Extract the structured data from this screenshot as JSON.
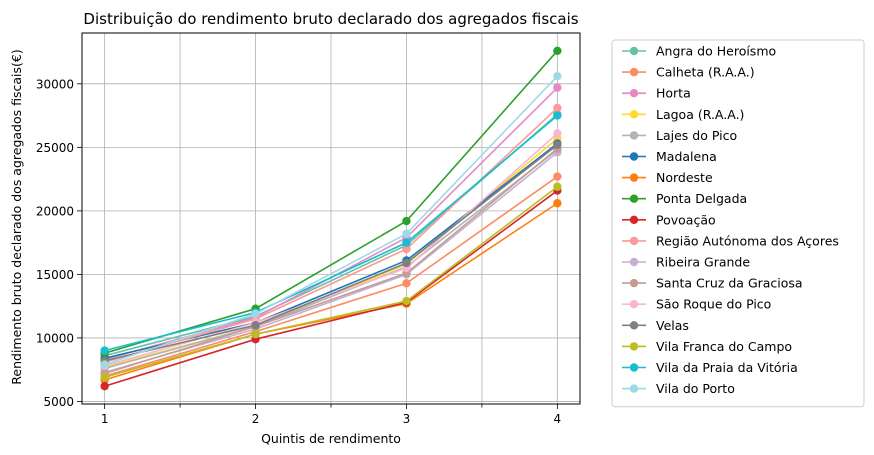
{
  "chart_data": {
    "type": "line",
    "title": "Distribuição do rendimento bruto declarado dos agregados fiscais",
    "xlabel": "Quintis de rendimento",
    "ylabel": "Rendimento bruto declarado dos agregados fiscais(€)",
    "x": [
      1,
      2,
      3,
      4
    ],
    "x_ticks": [
      "1",
      "2",
      "3",
      "4"
    ],
    "xlim": [
      0.85,
      4.15
    ],
    "y_ticks": [
      5000,
      10000,
      15000,
      20000,
      25000,
      30000
    ],
    "ylim": [
      4800,
      34000
    ],
    "grid": true,
    "legend_position": "outside-right",
    "series": [
      {
        "name": "Angra do Heroísmo",
        "color": "#66c2a5",
        "values": [
          8600,
          11700,
          17300,
          27600
        ]
      },
      {
        "name": "Calheta (R.A.A.)",
        "color": "#fc8d62",
        "values": [
          7000,
          10500,
          14300,
          22700
        ]
      },
      {
        "name": "Horta",
        "color": "#e78ac3",
        "values": [
          8300,
          11600,
          17900,
          29700
        ]
      },
      {
        "name": "Lagoa (R.A.A.)",
        "color": "#ffd92f",
        "values": [
          7700,
          10900,
          15800,
          25700
        ]
      },
      {
        "name": "Lajes do Pico",
        "color": "#b3b3b3",
        "values": [
          7600,
          10900,
          15600,
          24800
        ]
      },
      {
        "name": "Madalena",
        "color": "#1f77b4",
        "values": [
          8400,
          11200,
          16100,
          25300
        ]
      },
      {
        "name": "Nordeste",
        "color": "#ff7f0e",
        "values": [
          6700,
          10300,
          12700,
          20600
        ]
      },
      {
        "name": "Ponta Delgada",
        "color": "#2ca02c",
        "values": [
          8800,
          12300,
          19200,
          32600
        ]
      },
      {
        "name": "Povoação",
        "color": "#d62728",
        "values": [
          6200,
          9900,
          12800,
          21600
        ]
      },
      {
        "name": "Região Autónoma dos Açores",
        "color": "#ff9896",
        "values": [
          8100,
          11500,
          17000,
          28100
        ]
      },
      {
        "name": "Ribeira Grande",
        "color": "#c5b0d5",
        "values": [
          7300,
          10700,
          15000,
          24600
        ]
      },
      {
        "name": "Santa Cruz da Graciosa",
        "color": "#c49c94",
        "values": [
          7200,
          10900,
          15100,
          24900
        ]
      },
      {
        "name": "São Roque do Pico",
        "color": "#f7b6d2",
        "values": [
          7800,
          11200,
          15500,
          26100
        ]
      },
      {
        "name": "Velas",
        "color": "#7f7f7f",
        "values": [
          8200,
          11000,
          15900,
          25200
        ]
      },
      {
        "name": "Vila Franca do Campo",
        "color": "#bcbd22",
        "values": [
          6900,
          10300,
          12900,
          21900
        ]
      },
      {
        "name": "Vila da Praia da Vitória",
        "color": "#17becf",
        "values": [
          9000,
          12000,
          17500,
          27500
        ]
      },
      {
        "name": "Vila do Porto",
        "color": "#9edae5",
        "values": [
          7900,
          11900,
          18200,
          30600
        ]
      }
    ]
  }
}
